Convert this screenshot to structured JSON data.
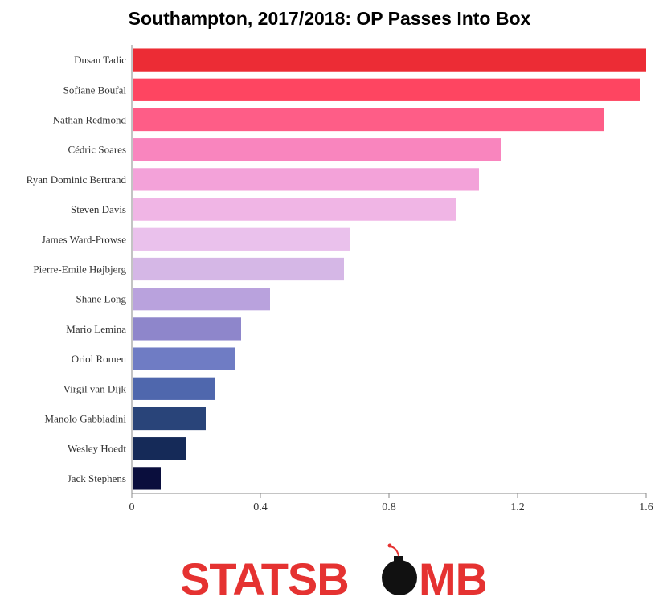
{
  "chart_data": {
    "type": "bar",
    "orientation": "horizontal",
    "title": "Southampton, 2017/2018: OP Passes Into Box",
    "xlabel": "",
    "ylabel": "",
    "xlim": [
      0,
      1.6
    ],
    "ticks": [
      0,
      0.4,
      0.8,
      1.2,
      1.6
    ],
    "tick_labels": [
      "0",
      "0.4",
      "0.8",
      "1.2",
      "1.6"
    ],
    "grid": false,
    "categories": [
      "Dusan Tadic",
      "Sofiane Boufal",
      "Nathan Redmond",
      "Cédric Soares",
      "Ryan Dominic Bertrand",
      "Steven Davis",
      "James Ward-Prowse",
      "Pierre-Emile Højbjerg",
      "Shane Long",
      "Mario Lemina",
      "Oriol Romeu",
      "Virgil van Dijk",
      "Manolo Gabbiadini",
      "Wesley Hoedt",
      "Jack Stephens"
    ],
    "values": [
      1.6,
      1.58,
      1.47,
      1.15,
      1.08,
      1.01,
      0.68,
      0.66,
      0.43,
      0.34,
      0.32,
      0.26,
      0.23,
      0.17,
      0.09
    ],
    "colors": [
      "#ec2c35",
      "#fe4561",
      "#fe5d87",
      "#f985be",
      "#f3a2d9",
      "#f0b5e5",
      "#eac1ec",
      "#d5b7e6",
      "#b9a2dd",
      "#8e86cb",
      "#6f7cc4",
      "#4f67ad",
      "#294479",
      "#152a58",
      "#0a0e3d"
    ]
  },
  "logo": {
    "text_left": "STATSB",
    "text_right": "MB",
    "color": "#e53231",
    "bomb_color": "#111111"
  }
}
